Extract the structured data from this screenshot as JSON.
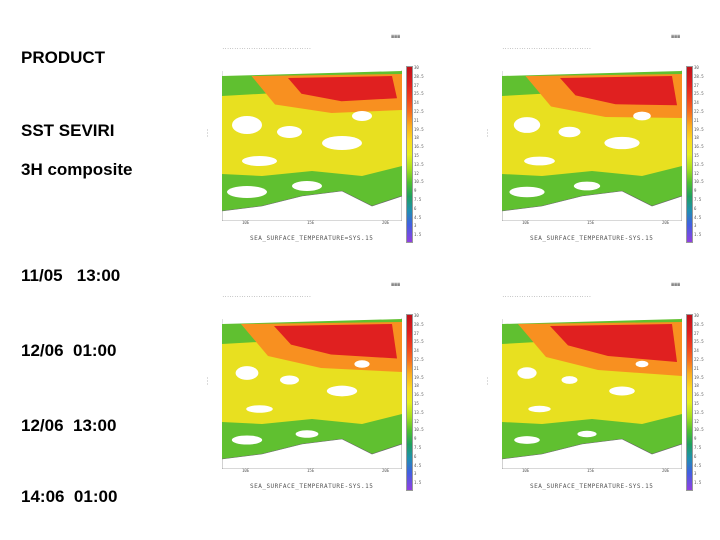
{
  "labels": {
    "product": "PRODUCT",
    "sst": "SST SEVIRI",
    "composite": "3H composite",
    "times": [
      "11/05   13:00",
      "12/06  01:00",
      "12/06  13:00",
      "14:06  01:00"
    ]
  },
  "panels": [
    {
      "footer": "SEA_SURFACE_TEMPERATURE=SYS.15",
      "colorbar_ticks": [
        "30",
        "28.5",
        "27",
        "25.5",
        "24",
        "22.5",
        "21",
        "19.5",
        "18",
        "16.5",
        "15",
        "13.5",
        "12",
        "10.5",
        "9",
        "7.5",
        "6",
        "4.5",
        "3",
        "1.5"
      ],
      "x_ticks": [
        "10E",
        "15E",
        "20E"
      ]
    },
    {
      "footer": "SEA_SURFACE_TEMPERATURE-SYS.15",
      "colorbar_ticks": [
        "30",
        "28.5",
        "27",
        "25.5",
        "24",
        "22.5",
        "21",
        "19.5",
        "18",
        "16.5",
        "15",
        "13.5",
        "12",
        "10.5",
        "9",
        "7.5",
        "6",
        "4.5",
        "3",
        "1.5"
      ],
      "x_ticks": [
        "10E",
        "15E",
        "20E"
      ]
    },
    {
      "footer": "SEA_SURFACE_TEMPERATURE-SYS.15",
      "colorbar_ticks": [
        "30",
        "28.5",
        "27",
        "25.5",
        "24",
        "22.5",
        "21",
        "19.5",
        "18",
        "16.5",
        "15",
        "13.5",
        "12",
        "10.5",
        "9",
        "7.5",
        "6",
        "4.5",
        "3",
        "1.5"
      ],
      "x_ticks": [
        "10E",
        "15E",
        "20E"
      ]
    },
    {
      "footer": "SEA_SURFACE_TEMPERATURE-SYS.15",
      "colorbar_ticks": [
        "30",
        "28.5",
        "27",
        "25.5",
        "24",
        "22.5",
        "21",
        "19.5",
        "18",
        "16.5",
        "15",
        "13.5",
        "12",
        "10.5",
        "9",
        "7.5",
        "6",
        "4.5",
        "3",
        "1.5"
      ],
      "x_ticks": [
        "10E",
        "15E",
        "20E"
      ]
    }
  ],
  "colors": {
    "hot": "#e02020",
    "warm": "#f89020",
    "mild": "#e8e020",
    "cool": "#60c030",
    "cold": "#2090b0",
    "land": "#ffffff"
  }
}
